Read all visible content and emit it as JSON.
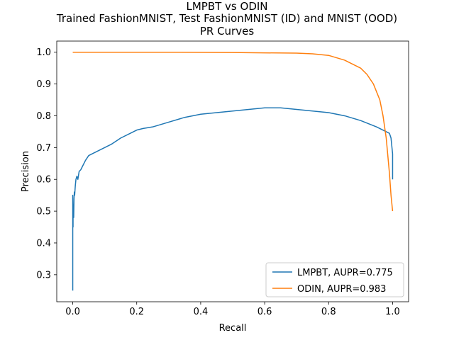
{
  "chart_data": {
    "type": "line",
    "title": [
      "LMPBT vs ODIN",
      "Trained FashionMNIST, Test FashionMNIST (ID) and MNIST (OOD)",
      "PR Curves"
    ],
    "xlabel": "Recall",
    "ylabel": "Precision",
    "xlim": [
      -0.05,
      1.05
    ],
    "ylim": [
      0.215,
      1.035
    ],
    "xticks": [
      0.0,
      0.2,
      0.4,
      0.6,
      0.8,
      1.0
    ],
    "xtick_labels": [
      "0.0",
      "0.2",
      "0.4",
      "0.6",
      "0.8",
      "1.0"
    ],
    "yticks": [
      0.3,
      0.4,
      0.5,
      0.6,
      0.7,
      0.8,
      0.9,
      1.0
    ],
    "ytick_labels": [
      "0.3",
      "0.4",
      "0.5",
      "0.6",
      "0.7",
      "0.8",
      "0.9",
      "1.0"
    ],
    "grid": false,
    "legend_position": "bottom-right",
    "series": [
      {
        "name": "LMPBT, AUPR=0.775",
        "color": "#1f77b4",
        "x": [
          0.0,
          0.0,
          0.0,
          0.0,
          0.001,
          0.001,
          0.002,
          0.003,
          0.004,
          0.005,
          0.006,
          0.008,
          0.01,
          0.013,
          0.016,
          0.02,
          0.025,
          0.03,
          0.04,
          0.05,
          0.06,
          0.08,
          0.1,
          0.12,
          0.15,
          0.18,
          0.2,
          0.22,
          0.25,
          0.3,
          0.35,
          0.4,
          0.45,
          0.5,
          0.55,
          0.6,
          0.65,
          0.7,
          0.75,
          0.8,
          0.85,
          0.9,
          0.95,
          0.97,
          0.98,
          0.99,
          0.995,
          1.0,
          1.0
        ],
        "y": [
          0.25,
          0.3,
          0.42,
          0.55,
          0.45,
          0.5,
          0.52,
          0.48,
          0.54,
          0.56,
          0.55,
          0.58,
          0.6,
          0.61,
          0.6,
          0.625,
          0.63,
          0.64,
          0.66,
          0.675,
          0.68,
          0.69,
          0.7,
          0.71,
          0.73,
          0.745,
          0.755,
          0.76,
          0.765,
          0.78,
          0.795,
          0.805,
          0.81,
          0.815,
          0.82,
          0.825,
          0.825,
          0.82,
          0.815,
          0.81,
          0.8,
          0.785,
          0.765,
          0.755,
          0.75,
          0.745,
          0.73,
          0.68,
          0.6
        ]
      },
      {
        "name": "ODIN, AUPR=0.983",
        "color": "#ff7f0e",
        "x": [
          0.0,
          0.1,
          0.3,
          0.5,
          0.7,
          0.75,
          0.8,
          0.85,
          0.9,
          0.92,
          0.94,
          0.96,
          0.97,
          0.98,
          0.99,
          0.995,
          1.0
        ],
        "y": [
          1.0,
          1.0,
          1.0,
          0.999,
          0.997,
          0.995,
          0.99,
          0.975,
          0.95,
          0.93,
          0.9,
          0.85,
          0.8,
          0.73,
          0.62,
          0.55,
          0.5
        ]
      }
    ]
  }
}
